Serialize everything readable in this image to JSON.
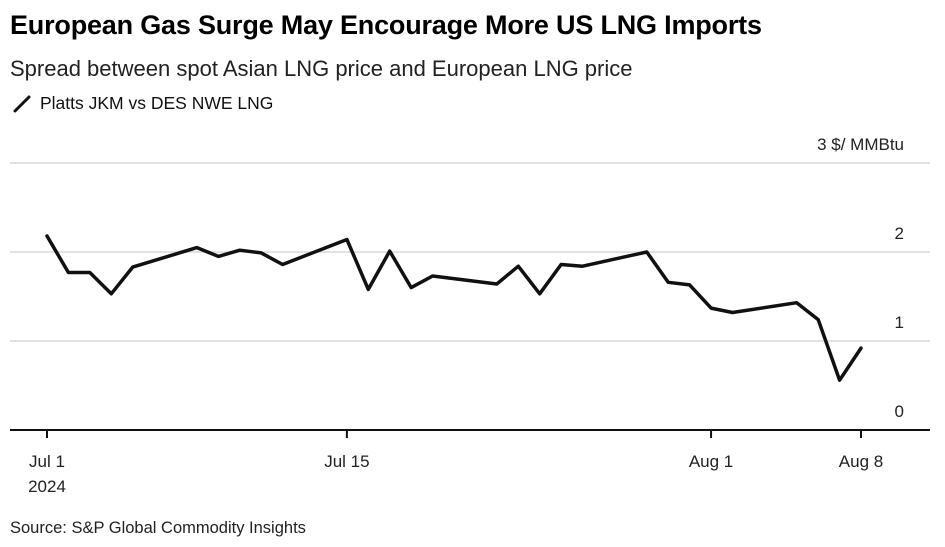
{
  "title": "European Gas Surge May Encourage More US LNG Imports",
  "subtitle": "Spread between spot Asian LNG price and European LNG price",
  "source": "Source: S&P Global Commodity Insights",
  "colors": {
    "line": "#111111",
    "grid": "#d9d9d9",
    "axis": "#111111"
  },
  "chart_data": {
    "type": "line",
    "title": "European Gas Surge May Encourage More US LNG Imports",
    "subtitle": "Spread between spot Asian LNG price and European LNG price",
    "ylabel": "$/ MMBtu",
    "ylim": [
      0,
      3
    ],
    "yticks": [
      0,
      1,
      2,
      3
    ],
    "ytick_labels": [
      "0",
      "1",
      "2",
      "3 $/ MMBtu"
    ],
    "xlim": [
      "2024-07-01",
      "2024-08-08"
    ],
    "xticks": [
      "2024-07-01",
      "2024-07-15",
      "2024-08-01",
      "2024-08-08"
    ],
    "xtick_labels": [
      "Jul 1",
      "Jul 15",
      "Aug 1",
      "Aug 8"
    ],
    "xtick_sublabels": [
      "2024",
      "",
      "",
      ""
    ],
    "grid": true,
    "legend_position": "top-left",
    "series": [
      {
        "name": "Platts JKM vs DES NWE LNG",
        "points": [
          [
            "2024-07-01",
            2.18
          ],
          [
            "2024-07-02",
            1.77
          ],
          [
            "2024-07-03",
            1.77
          ],
          [
            "2024-07-04",
            1.53
          ],
          [
            "2024-07-05",
            1.83
          ],
          [
            "2024-07-08",
            2.05
          ],
          [
            "2024-07-09",
            1.95
          ],
          [
            "2024-07-10",
            2.02
          ],
          [
            "2024-07-11",
            1.99
          ],
          [
            "2024-07-12",
            1.86
          ],
          [
            "2024-07-15",
            2.14
          ],
          [
            "2024-07-16",
            1.58
          ],
          [
            "2024-07-17",
            2.01
          ],
          [
            "2024-07-18",
            1.6
          ],
          [
            "2024-07-19",
            1.73
          ],
          [
            "2024-07-22",
            1.64
          ],
          [
            "2024-07-23",
            1.84
          ],
          [
            "2024-07-24",
            1.53
          ],
          [
            "2024-07-25",
            1.86
          ],
          [
            "2024-07-26",
            1.84
          ],
          [
            "2024-07-29",
            2.0
          ],
          [
            "2024-07-30",
            1.66
          ],
          [
            "2024-07-31",
            1.63
          ],
          [
            "2024-08-01",
            1.37
          ],
          [
            "2024-08-02",
            1.32
          ],
          [
            "2024-08-05",
            1.43
          ],
          [
            "2024-08-06",
            1.24
          ],
          [
            "2024-08-07",
            0.56
          ],
          [
            "2024-08-08",
            0.92
          ]
        ]
      }
    ]
  }
}
